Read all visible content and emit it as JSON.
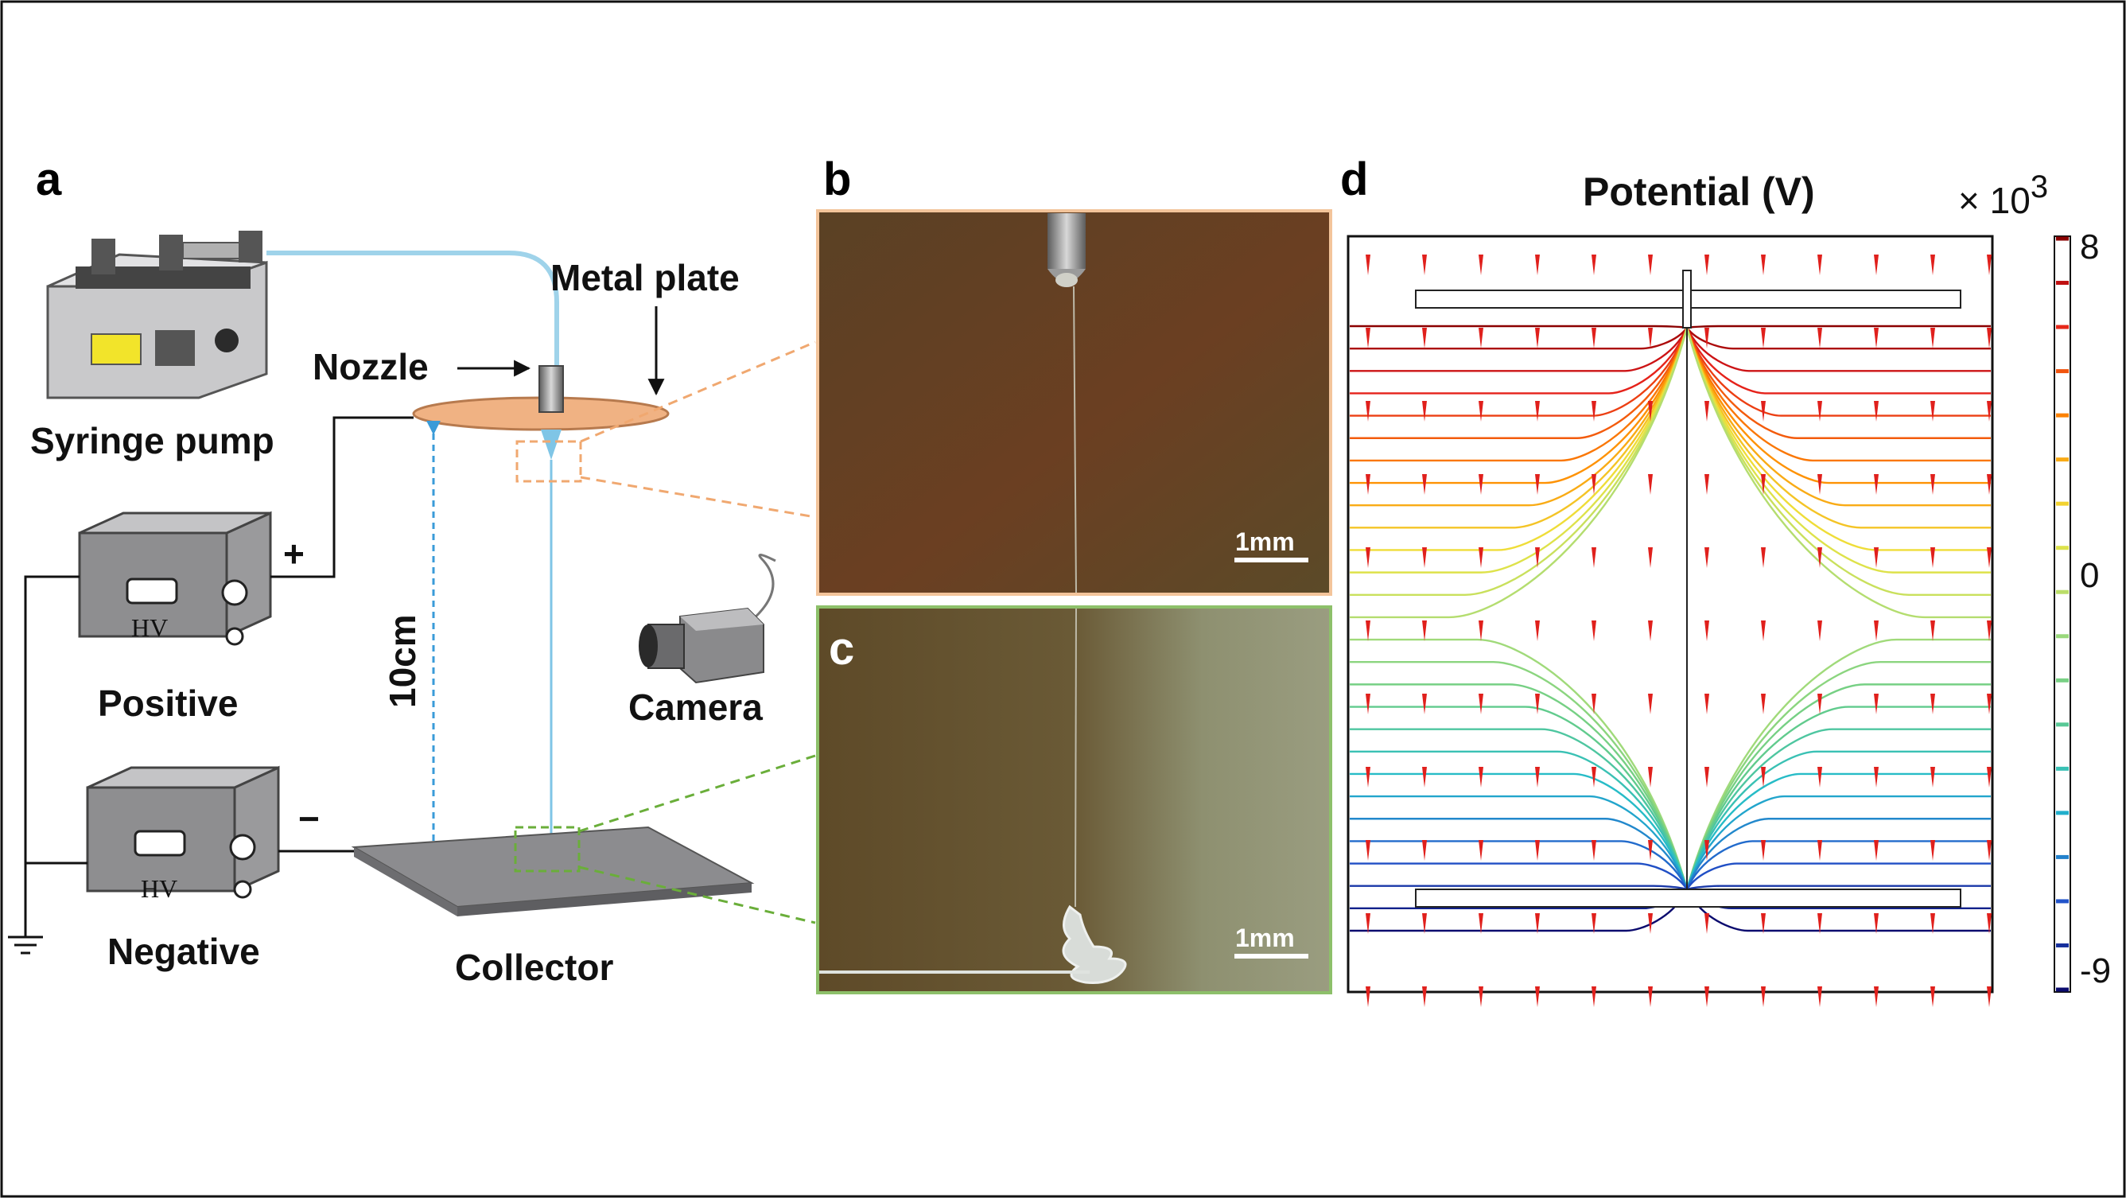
{
  "panels": {
    "a": {
      "letter": "a",
      "labels": {
        "syringe_pump": "Syringe pump",
        "metal_plate": "Metal plate",
        "nozzle": "Nozzle",
        "positive": "Positive",
        "negative": "Negative",
        "collector": "Collector",
        "camera": "Camera",
        "distance": "10cm",
        "plus": "+",
        "minus": "−",
        "hv_positive": "HV",
        "hv_negative": "HV"
      }
    },
    "b": {
      "letter": "b",
      "scale_bar": "1mm"
    },
    "c": {
      "letter": "c",
      "scale_bar": "1mm"
    },
    "d": {
      "letter": "d",
      "title": "Potential (V)",
      "multiplier_base": "× 10",
      "multiplier_exp": "3",
      "colorbar": {
        "max_label": "8",
        "zero_label": "0",
        "min_label": "-9",
        "min": -9,
        "max": 8
      }
    }
  },
  "colors": {
    "tube": "#9fd3ea",
    "plate": "#f0b283",
    "collector": "#8c8c8f",
    "panel_b_border": "#f3c49a",
    "panel_c_border": "#8dc06a",
    "zoom_b": "#f0a870",
    "zoom_c": "#6aae3a",
    "distance_arrow": "#3a9bd8",
    "field_arrows": "#e0201c"
  }
}
